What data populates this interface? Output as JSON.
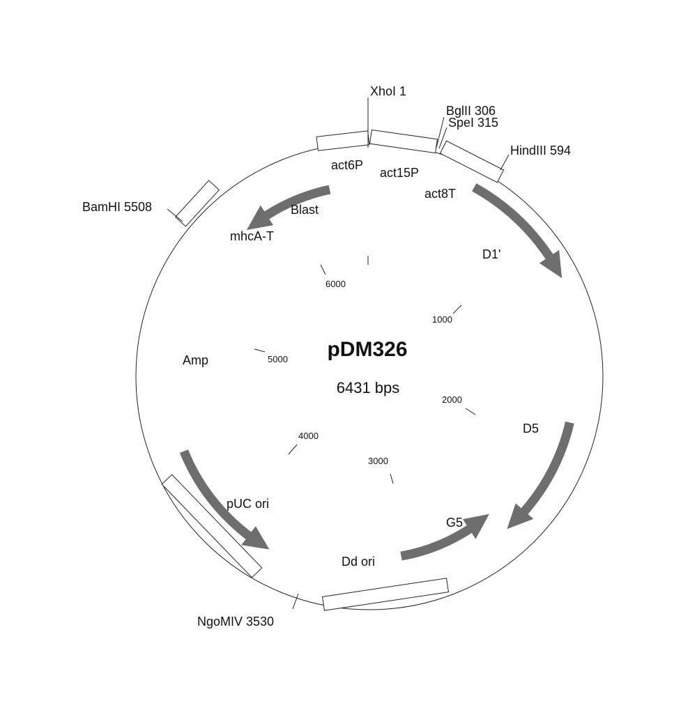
{
  "plasmid": {
    "name": "pDM326",
    "size_label": "6431 bps",
    "total_bp": 6431
  },
  "scale_ticks": [
    {
      "label": "1000"
    },
    {
      "label": "2000"
    },
    {
      "label": "3000"
    },
    {
      "label": "4000"
    },
    {
      "label": "5000"
    },
    {
      "label": "6000"
    }
  ],
  "restriction_sites": [
    {
      "label": "XhoI 1"
    },
    {
      "label": "BglII 306"
    },
    {
      "label": "SpeI 315"
    },
    {
      "label": "HindIII 594"
    },
    {
      "label": "BamHI 5508"
    },
    {
      "label": "NgoMIV 3530"
    }
  ],
  "box_features": [
    {
      "label": "act6P"
    },
    {
      "label": "act15P"
    },
    {
      "label": "act8T"
    },
    {
      "label": "mhcA-T"
    },
    {
      "label": "pUC ori"
    },
    {
      "label": "Dd ori"
    }
  ],
  "arrow_features": [
    {
      "label": "Blast"
    },
    {
      "label": "D1'"
    },
    {
      "label": "Amp"
    },
    {
      "label": "D5"
    },
    {
      "label": "G5"
    }
  ],
  "colors": {
    "arrow": "#6e6e6e",
    "outline": "#222222"
  }
}
